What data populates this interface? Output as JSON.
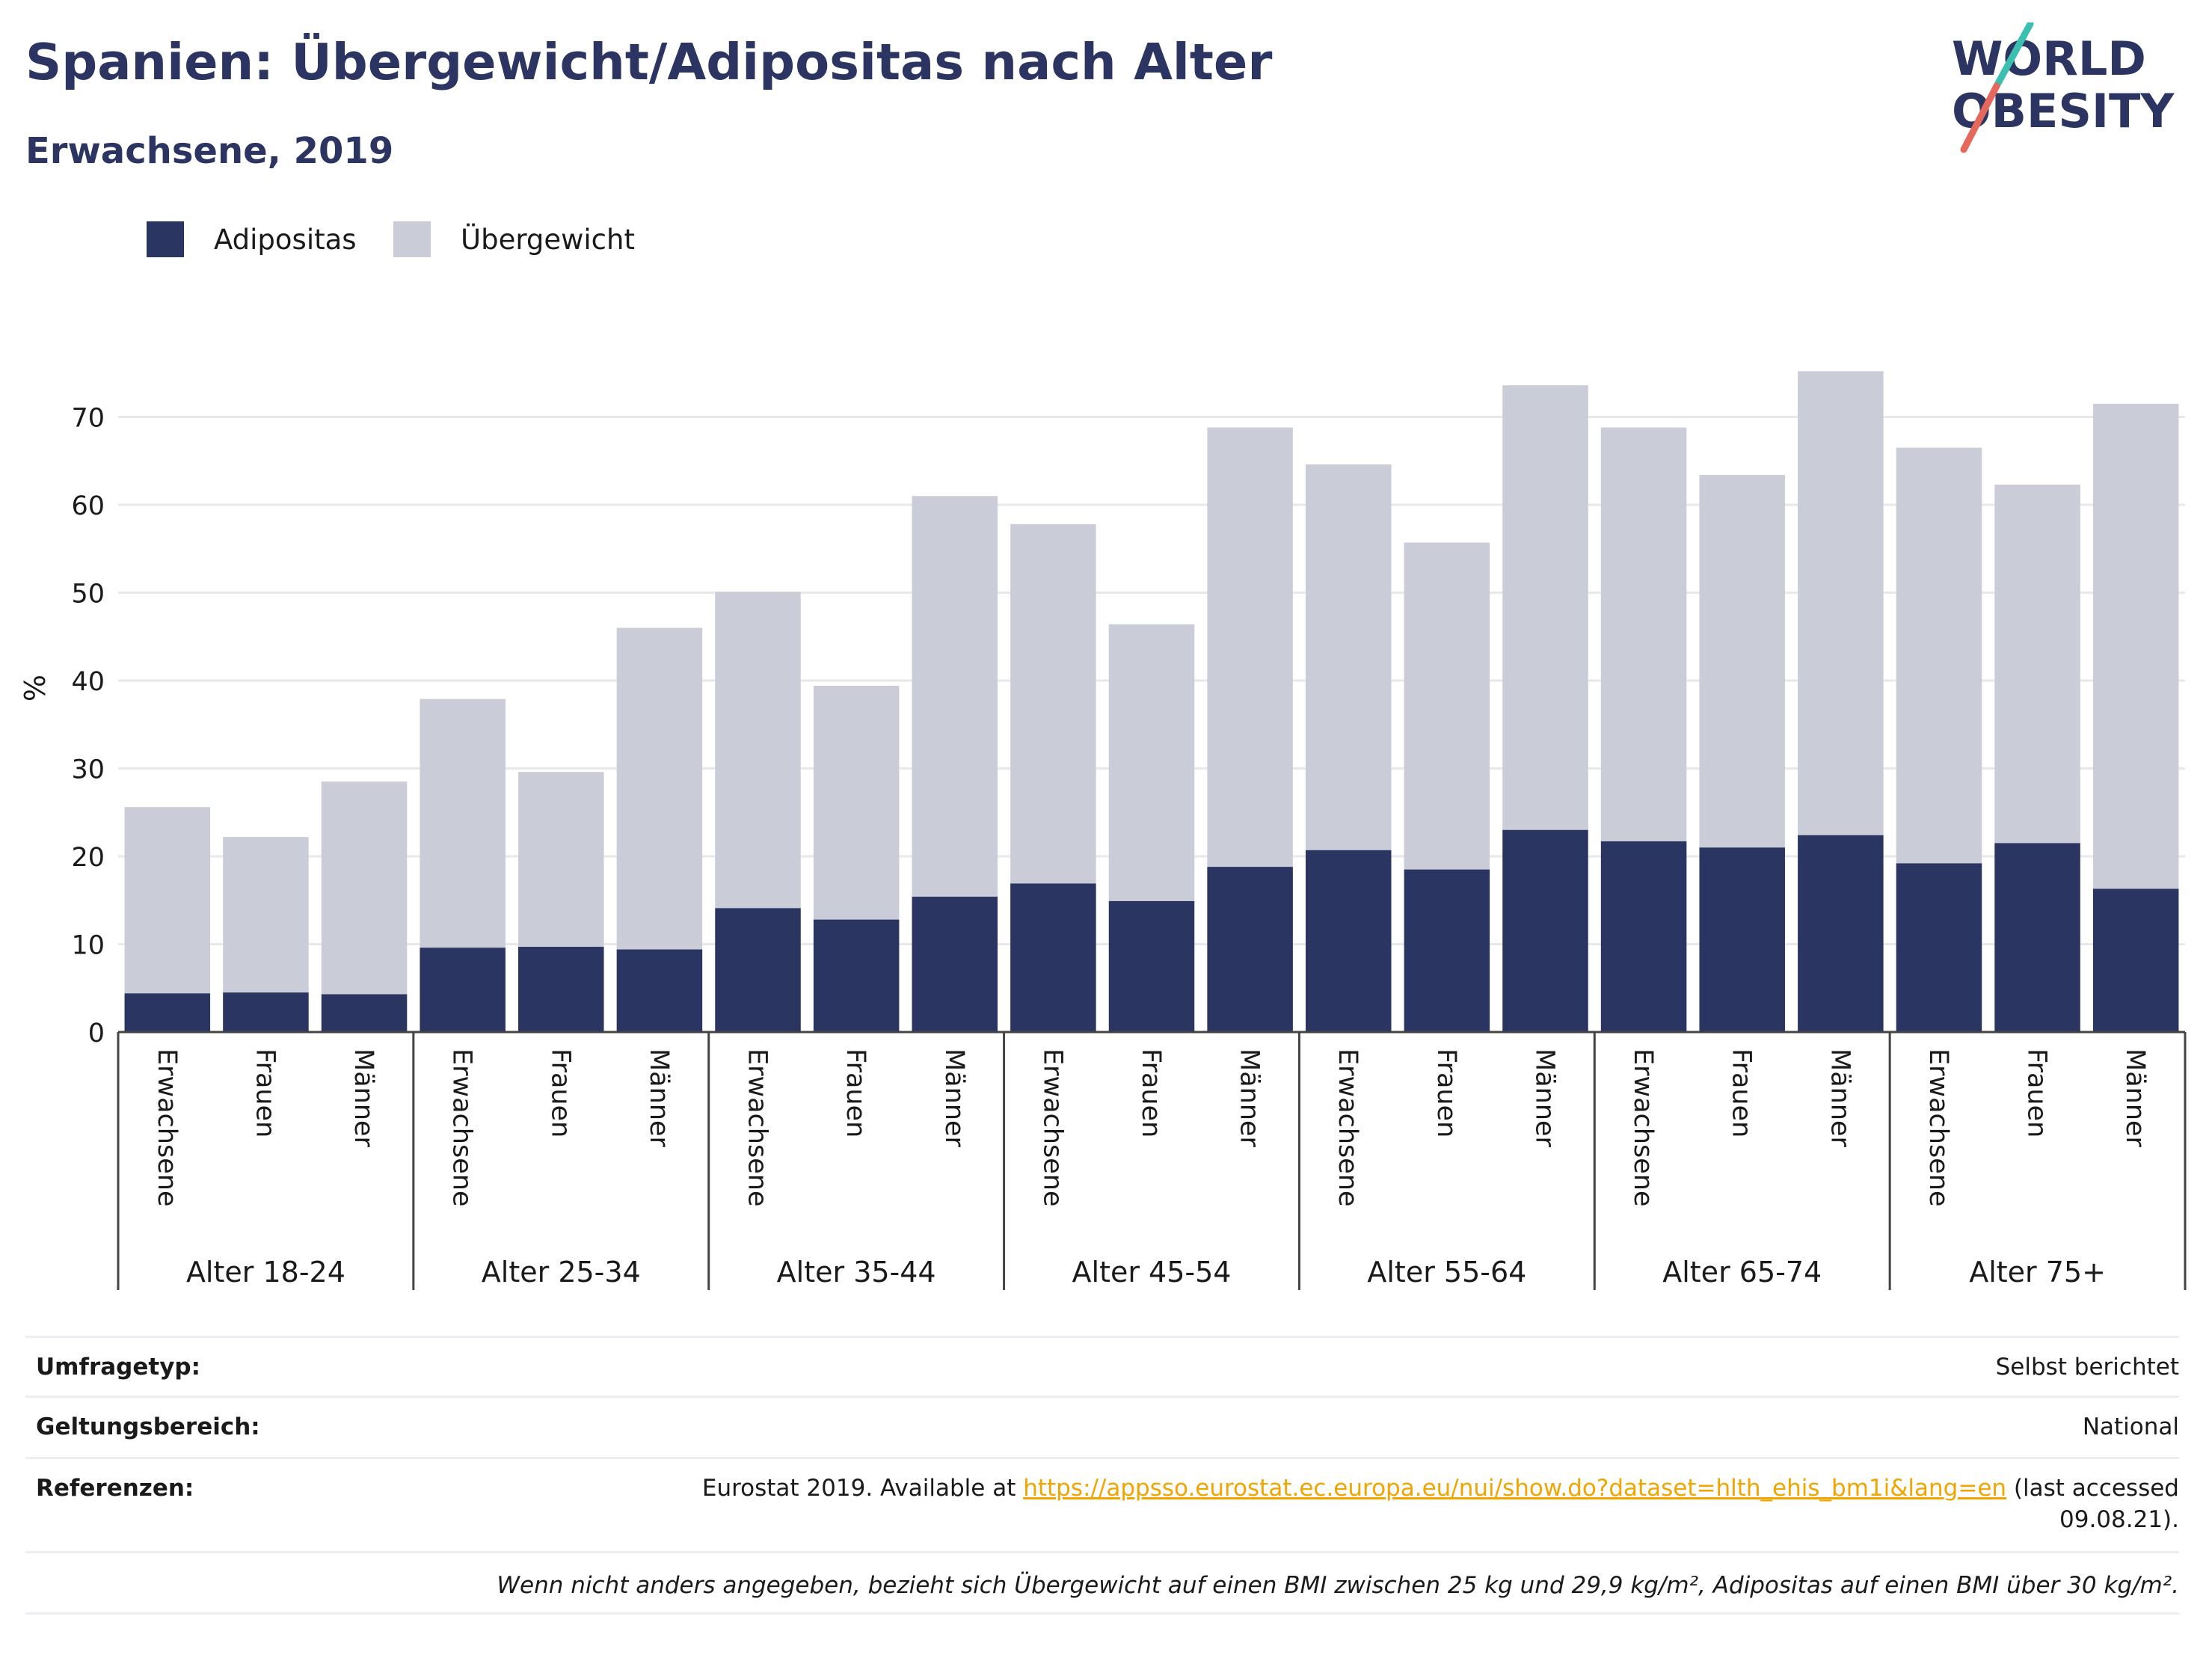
{
  "header": {
    "title": "Spanien: Übergewicht/Adipositas nach Alter",
    "subtitle": "Erwachsene, 2019"
  },
  "logo": {
    "line1": "WORLD",
    "line2": "OBESITY",
    "colors": {
      "text": "#2c3561",
      "slash_top": "#3bbfb0",
      "slash_bottom": "#e4685c"
    }
  },
  "legend": {
    "items": [
      {
        "label": "Adipositas",
        "color": "#2a3561"
      },
      {
        "label": "Übergewicht",
        "color": "#cacdd8"
      }
    ]
  },
  "chart_data": {
    "type": "bar",
    "stacked": true,
    "ylabel": "%",
    "ylim": [
      0,
      78
    ],
    "yticks": [
      0,
      10,
      20,
      30,
      40,
      50,
      60,
      70
    ],
    "grid": true,
    "legend_position": "top-left",
    "groups": [
      "Alter 18-24",
      "Alter 25-34",
      "Alter 35-44",
      "Alter 45-54",
      "Alter 55-64",
      "Alter 65-74",
      "Alter 75+"
    ],
    "subcategories": [
      "Erwachsene",
      "Frauen",
      "Männer"
    ],
    "series": [
      {
        "name": "Adipositas",
        "color": "#2a3561",
        "values": [
          4.4,
          4.5,
          4.3,
          9.6,
          9.7,
          9.4,
          14.1,
          12.8,
          15.4,
          16.9,
          14.9,
          18.8,
          20.7,
          18.5,
          23.0,
          21.7,
          21.0,
          22.4,
          19.2,
          21.5,
          16.3
        ]
      },
      {
        "name": "Übergewicht",
        "color": "#cacdd8",
        "values": [
          21.2,
          17.7,
          24.2,
          28.3,
          19.9,
          36.6,
          36.0,
          26.6,
          45.6,
          40.9,
          31.5,
          50.0,
          43.9,
          37.2,
          50.6,
          47.1,
          42.4,
          52.8,
          47.3,
          40.8,
          55.2
        ]
      }
    ]
  },
  "info": {
    "rows": [
      {
        "label": "Umfragetyp:",
        "value": "Selbst berichtet"
      },
      {
        "label": "Geltungsbereich:",
        "value": "National"
      }
    ],
    "references": {
      "label": "Referenzen:",
      "text_before": "Eurostat 2019. Available at ",
      "link": "https://appsso.eurostat.ec.europa.eu/nui/show.do?dataset=hlth_ehis_bm1i&lang=en",
      "text_after": " (last accessed",
      "text_line2": "09.08.21)."
    },
    "footnote": "Wenn nicht anders angegeben, bezieht sich Übergewicht auf einen BMI zwischen 25 kg und 29,9 kg/m², Adipositas auf einen BMI über 30 kg/m²."
  }
}
